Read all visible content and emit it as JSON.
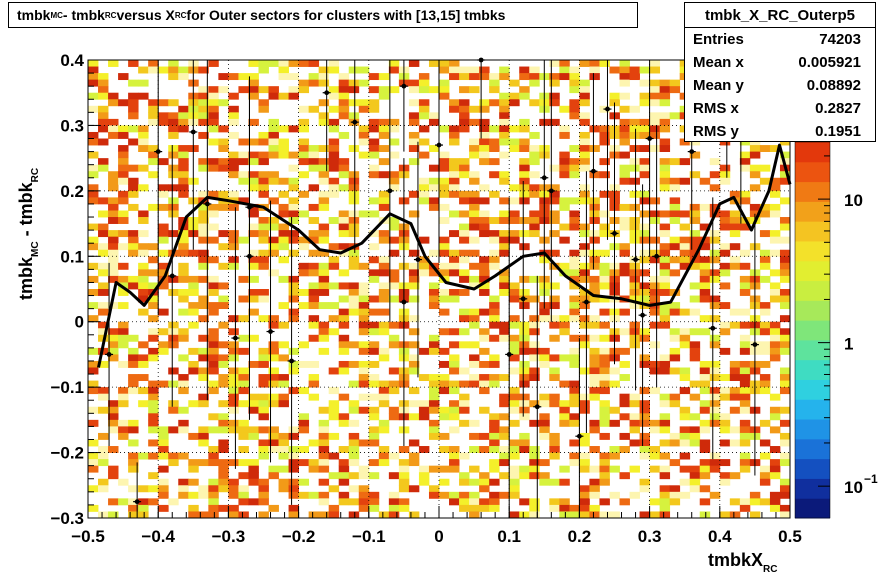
{
  "title": {
    "a": "tmbk",
    "a_sub": "MC",
    "b": " - tmbk",
    "b_sub": "RC",
    "c": " versus X",
    "c_sub": "RC",
    "d": " for Outer sectors for clusters with [13,15] tmbks"
  },
  "stats": {
    "name": "tmbk_X_RC_Outerp5",
    "rows": [
      {
        "k": "Entries",
        "v": "74203"
      },
      {
        "k": "Mean x",
        "v": "0.005921"
      },
      {
        "k": "Mean y",
        "v": "0.08892"
      },
      {
        "k": "RMS x",
        "v": "0.2827"
      },
      {
        "k": "RMS y",
        "v": "0.1951"
      }
    ]
  },
  "chart_data": {
    "type": "heatmap",
    "xlabel": {
      "main": "tmbkX",
      "sub": "RC"
    },
    "ylabel": {
      "a": "tmbk",
      "a_sub": "MC",
      "b": " - tmbk",
      "b_sub": "RC"
    },
    "xlim": [
      -0.5,
      0.5
    ],
    "ylim": [
      -0.3,
      0.4
    ],
    "x_ticks": [
      "−0.5",
      "−0.4",
      "−0.3",
      "−0.2",
      "−0.1",
      "0",
      "0.1",
      "0.2",
      "0.3",
      "0.4",
      "0.5"
    ],
    "y_ticks": [
      "−0.3",
      "−0.2",
      "−0.1",
      "0",
      "0.1",
      "0.2",
      "0.3",
      "0.4"
    ],
    "z_scale": "log",
    "z_ticks": [
      {
        "v": 0.1,
        "label": "10",
        "exp": "−1"
      },
      {
        "v": 1,
        "label": "1"
      },
      {
        "v": 10,
        "label": "10"
      }
    ],
    "grid": true,
    "profile": {
      "x": [
        -0.485,
        -0.46,
        -0.44,
        -0.42,
        -0.39,
        -0.36,
        -0.33,
        -0.3,
        -0.25,
        -0.2,
        -0.17,
        -0.14,
        -0.11,
        -0.07,
        -0.04,
        -0.02,
        0.01,
        0.05,
        0.08,
        0.12,
        0.15,
        0.18,
        0.22,
        0.26,
        0.3,
        0.33,
        0.37,
        0.4,
        0.42,
        0.445,
        0.47,
        0.485,
        0.5
      ],
      "y": [
        -0.07,
        0.06,
        0.045,
        0.025,
        0.07,
        0.16,
        0.19,
        0.185,
        0.175,
        0.14,
        0.11,
        0.105,
        0.12,
        0.165,
        0.15,
        0.1,
        0.06,
        0.05,
        0.07,
        0.1,
        0.105,
        0.07,
        0.04,
        0.035,
        0.025,
        0.03,
        0.11,
        0.18,
        0.19,
        0.14,
        0.2,
        0.27,
        0.21
      ]
    },
    "points": [
      {
        "x": -0.47,
        "y": -0.05,
        "e": 0.14
      },
      {
        "x": -0.43,
        "y": -0.275,
        "e": 0.06
      },
      {
        "x": -0.4,
        "y": 0.26,
        "e": 0.25
      },
      {
        "x": -0.38,
        "y": 0.07,
        "e": 0.2
      },
      {
        "x": -0.35,
        "y": 0.29,
        "e": 0.18
      },
      {
        "x": -0.33,
        "y": 0.18,
        "e": 0.3
      },
      {
        "x": -0.29,
        "y": -0.025,
        "e": 0.2
      },
      {
        "x": -0.27,
        "y": 0.1,
        "e": 0.25
      },
      {
        "x": -0.27,
        "y": 0.175,
        "e": 0.2
      },
      {
        "x": -0.24,
        "y": -0.015,
        "e": 0.2
      },
      {
        "x": -0.21,
        "y": -0.06,
        "e": 0.22
      },
      {
        "x": -0.16,
        "y": 0.35,
        "e": 0.12
      },
      {
        "x": -0.12,
        "y": 0.305,
        "e": 0.2
      },
      {
        "x": -0.07,
        "y": 0.2,
        "e": 0.2
      },
      {
        "x": -0.05,
        "y": 0.36,
        "e": 0.1
      },
      {
        "x": -0.05,
        "y": 0.03,
        "e": 0.22
      },
      {
        "x": -0.03,
        "y": 0.095,
        "e": 0.18
      },
      {
        "x": 0,
        "y": 0.27,
        "e": 0.18
      },
      {
        "x": 0.06,
        "y": 0.4,
        "e": 0.12
      },
      {
        "x": 0.1,
        "y": -0.05,
        "e": 0.24
      },
      {
        "x": 0.12,
        "y": 0.035,
        "e": 0.18
      },
      {
        "x": 0.14,
        "y": -0.13,
        "e": 0.2
      },
      {
        "x": 0.15,
        "y": 0.22,
        "e": 0.2
      },
      {
        "x": 0.16,
        "y": 0.2,
        "e": 0.2
      },
      {
        "x": 0.2,
        "y": -0.175,
        "e": 0.15
      },
      {
        "x": 0.21,
        "y": 0.03,
        "e": 0.2
      },
      {
        "x": 0.22,
        "y": 0.23,
        "e": 0.15
      },
      {
        "x": 0.24,
        "y": 0.325,
        "e": 0.2
      },
      {
        "x": 0.25,
        "y": 0.135,
        "e": 0.2
      },
      {
        "x": 0.28,
        "y": 0.095,
        "e": 0.2
      },
      {
        "x": 0.29,
        "y": 0.01,
        "e": 0.2
      },
      {
        "x": 0.3,
        "y": 0.28,
        "e": 0.18
      },
      {
        "x": 0.31,
        "y": 0.1,
        "e": 0.2
      },
      {
        "x": 0.36,
        "y": 0.26,
        "e": 0.15
      },
      {
        "x": 0.39,
        "y": -0.01,
        "e": 0.2
      },
      {
        "x": 0.41,
        "y": 0.34,
        "e": 0.12
      },
      {
        "x": 0.45,
        "y": -0.035,
        "e": 0.2
      },
      {
        "x": 0.43,
        "y": 0.3,
        "e": 0.15
      }
    ],
    "colors": [
      "#ffffff",
      "#fdf5b0",
      "#d6f23e",
      "#f4f02a",
      "#f3c81d",
      "#f29a18",
      "#ee6a12",
      "#e3420e",
      "#cf2a0a"
    ]
  }
}
